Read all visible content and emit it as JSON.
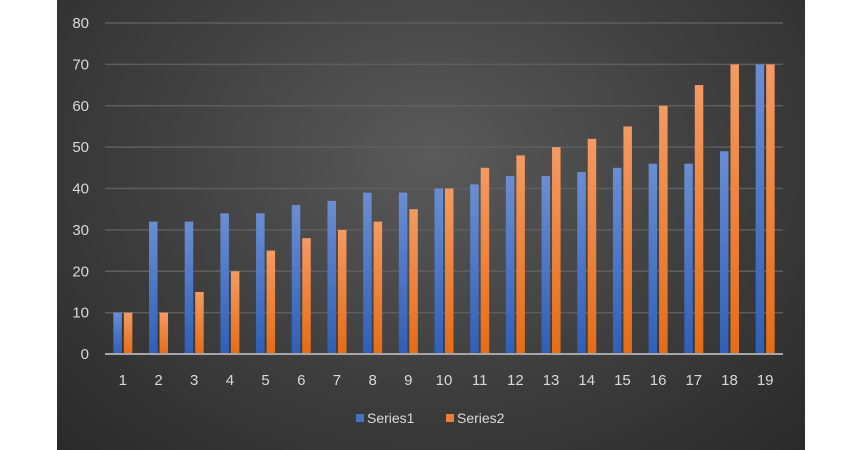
{
  "chart_data": {
    "type": "bar",
    "title": "",
    "xlabel": "",
    "ylabel": "",
    "categories": [
      "1",
      "2",
      "3",
      "4",
      "5",
      "6",
      "7",
      "8",
      "9",
      "10",
      "11",
      "12",
      "13",
      "14",
      "15",
      "16",
      "17",
      "18",
      "19"
    ],
    "series": [
      {
        "name": "Series1",
        "color": "#4472c4",
        "values": [
          10,
          32,
          32,
          34,
          34,
          36,
          37,
          39,
          39,
          40,
          41,
          43,
          43,
          44,
          45,
          46,
          46,
          49,
          70
        ]
      },
      {
        "name": "Series2",
        "color": "#ed7d31",
        "values": [
          10,
          10,
          15,
          20,
          25,
          28,
          30,
          32,
          35,
          40,
          45,
          48,
          50,
          52,
          55,
          60,
          65,
          70,
          70
        ]
      }
    ],
    "ylim": [
      0,
      80
    ],
    "yticks": [
      "0",
      "10",
      "20",
      "30",
      "40",
      "50",
      "60",
      "70",
      "80"
    ],
    "grid": true,
    "legend": "bottom"
  }
}
